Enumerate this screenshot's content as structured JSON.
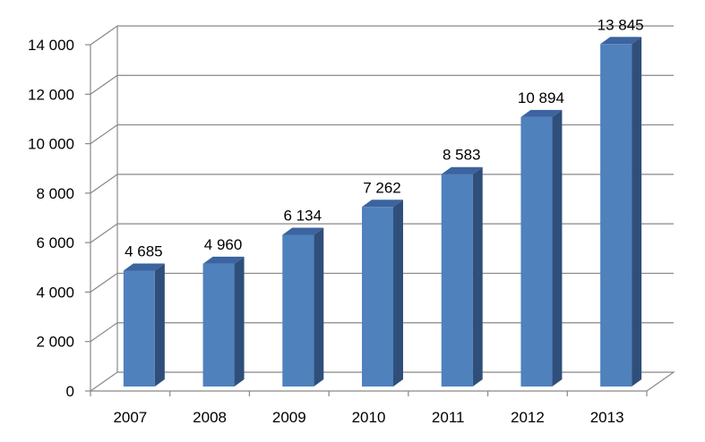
{
  "chart_data": {
    "type": "bar",
    "style": "3d-column",
    "categories": [
      "2007",
      "2008",
      "2009",
      "2010",
      "2011",
      "2012",
      "2013"
    ],
    "values": [
      4685,
      4960,
      6134,
      7262,
      8583,
      10894,
      13845
    ],
    "data_labels": [
      "4 685",
      "4 960",
      "6 134",
      "7 262",
      "8 583",
      "10 894",
      "13 845"
    ],
    "y_ticks": [
      {
        "value": 0,
        "label": "0"
      },
      {
        "value": 2000,
        "label": "2 000"
      },
      {
        "value": 4000,
        "label": "4 000"
      },
      {
        "value": 6000,
        "label": "6 000"
      },
      {
        "value": 8000,
        "label": "8 000"
      },
      {
        "value": 10000,
        "label": "10 000"
      },
      {
        "value": 12000,
        "label": "12 000"
      },
      {
        "value": 14000,
        "label": "14 000"
      }
    ],
    "ylim": [
      0,
      14000
    ],
    "grid": true,
    "legend": "none",
    "colors": {
      "bar_front": "#4F81BD",
      "bar_side": "#2F4F7A",
      "bar_top": "#3B64A0",
      "grid": "#888888"
    }
  }
}
